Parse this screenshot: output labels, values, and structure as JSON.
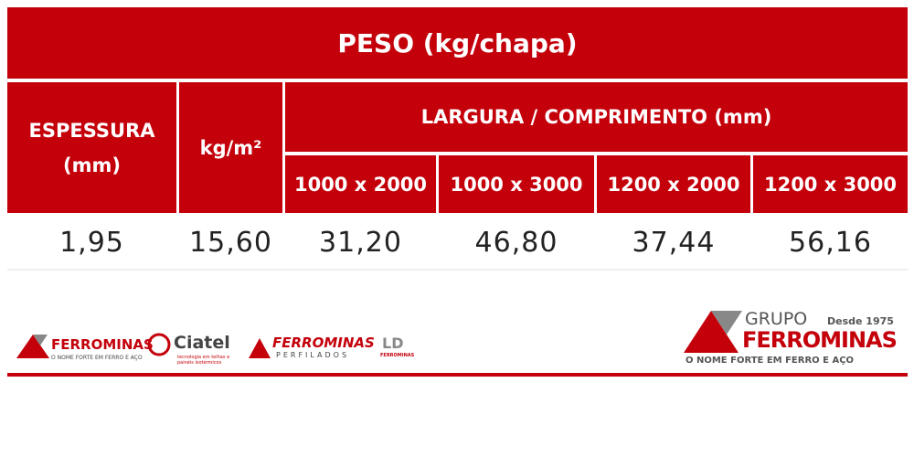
{
  "table": {
    "title": "PESO (kg/chapa)",
    "headers": [
      "ESPESSURA",
      "(mm)",
      "kg/m²",
      "LARGURA / COMPRIMENTO (mm)"
    ],
    "subheaders": [
      "1000 x 2000",
      "1000 x 3000",
      "1200 x 2000",
      "1200 x 3000"
    ],
    "rows": [
      [
        "1,95",
        "15,60",
        "31,20",
        "46,80",
        "37,44",
        "56,16"
      ]
    ]
  },
  "footer": {
    "logos": [
      {
        "name": "FERROMINAS",
        "tagline": "O NOME FORTE EM FERRO E AÇO"
      },
      {
        "name": "Ciatel",
        "tagline": "tecnologia em telhas e painéis isotérmicos"
      },
      {
        "name": "FERROMINAS",
        "tagline": "PERFILADOS"
      },
      {
        "name": "LD",
        "tagline": "FERROMINAS"
      }
    ],
    "group": {
      "prefix": "GRUPO",
      "since": "Desde 1975",
      "name": "FERROMINAS",
      "tagline": "O NOME FORTE EM FERRO E AÇO"
    }
  }
}
